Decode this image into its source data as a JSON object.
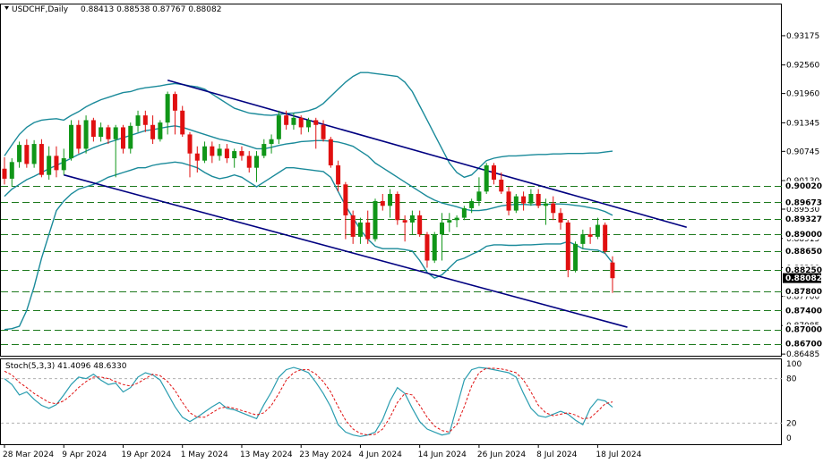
{
  "header": {
    "symbol": "USDCHF,Daily",
    "ohlc": "0.88413 0.88538 0.87767 0.88082",
    "stoch_label": "Stoch(5,3,3) 41.4096 48.6330"
  },
  "colors": {
    "bull": "#109618",
    "bear": "#e01010",
    "band": "#1a8a9a",
    "channel": "#000080",
    "level": "#1e7a1e",
    "stoch_main": "#2a9db0",
    "stoch_signal": "#e01010",
    "current_price_bg": "#000000"
  },
  "chart_data": [
    {
      "type": "candlestick",
      "title": "USDCHF,Daily",
      "subtitle": "0.88413 0.88538 0.87767 0.88082",
      "ylim": [
        0.8645,
        0.9385
      ],
      "x_ticks": [
        {
          "i": 0,
          "label": "28 Mar 2024"
        },
        {
          "i": 8,
          "label": "9 Apr 2024"
        },
        {
          "i": 16,
          "label": "19 Apr 2024"
        },
        {
          "i": 24,
          "label": "1 May 2024"
        },
        {
          "i": 32,
          "label": "13 May 2024"
        },
        {
          "i": 40,
          "label": "23 May 2024"
        },
        {
          "i": 48,
          "label": "4 Jun 2024"
        },
        {
          "i": 56,
          "label": "14 Jun 2024"
        },
        {
          "i": 64,
          "label": "26 Jun 2024"
        },
        {
          "i": 72,
          "label": "8 Jul 2024"
        },
        {
          "i": 80,
          "label": "18 Jul 2024"
        }
      ],
      "y_ticks": [
        0.93175,
        0.9256,
        0.9196,
        0.91345,
        0.90745,
        0.9013,
        0.8953,
        0.88915,
        0.883,
        0.877,
        0.87085,
        0.86485
      ],
      "y_tick_labels": [
        "0.93175",
        "0.92560",
        "0.91960",
        "0.91345",
        "0.90745",
        "0.90130",
        "0.89530",
        "0.88915",
        "0.88300",
        "0.87700",
        "0.87085",
        "0.86485"
      ],
      "levels": [
        0.9002,
        0.89673,
        0.89327,
        0.89,
        0.8865,
        0.8825,
        0.878,
        0.874,
        0.87,
        0.867
      ],
      "level_labels": [
        "0.90020",
        "0.89673",
        "0.89327",
        "0.89000",
        "0.88650",
        "0.88250",
        "0.87800",
        "0.87400",
        "0.87000",
        "0.86700"
      ],
      "current_price": 0.88082,
      "current_price_label": "0.88082",
      "candles": [
        [
          0.9038,
          0.9062,
          0.9005,
          0.9017
        ],
        [
          0.9017,
          0.906,
          0.9,
          0.9052
        ],
        [
          0.9052,
          0.9095,
          0.904,
          0.9088
        ],
        [
          0.9088,
          0.91,
          0.904,
          0.9048
        ],
        [
          0.9048,
          0.9098,
          0.904,
          0.909
        ],
        [
          0.909,
          0.91,
          0.902,
          0.9025
        ],
        [
          0.9025,
          0.9085,
          0.9015,
          0.9065
        ],
        [
          0.9065,
          0.9085,
          0.902,
          0.9035
        ],
        [
          0.9035,
          0.908,
          0.9025,
          0.906
        ],
        [
          0.906,
          0.914,
          0.9055,
          0.913
        ],
        [
          0.913,
          0.914,
          0.907,
          0.908
        ],
        [
          0.908,
          0.915,
          0.907,
          0.914
        ],
        [
          0.914,
          0.9145,
          0.9095,
          0.9105
        ],
        [
          0.9105,
          0.9135,
          0.9095,
          0.9125
        ],
        [
          0.9125,
          0.913,
          0.909,
          0.91
        ],
        [
          0.91,
          0.913,
          0.902,
          0.9125
        ],
        [
          0.9125,
          0.913,
          0.907,
          0.908
        ],
        [
          0.908,
          0.9135,
          0.907,
          0.9128
        ],
        [
          0.9128,
          0.916,
          0.9115,
          0.915
        ],
        [
          0.915,
          0.916,
          0.9115,
          0.913
        ],
        [
          0.913,
          0.915,
          0.909,
          0.91
        ],
        [
          0.91,
          0.914,
          0.9095,
          0.9135
        ],
        [
          0.9135,
          0.92,
          0.911,
          0.9195
        ],
        [
          0.9195,
          0.92,
          0.911,
          0.916
        ],
        [
          0.916,
          0.917,
          0.9105,
          0.911
        ],
        [
          0.911,
          0.9115,
          0.902,
          0.907
        ],
        [
          0.907,
          0.9085,
          0.903,
          0.9055
        ],
        [
          0.9055,
          0.9095,
          0.905,
          0.9085
        ],
        [
          0.9085,
          0.9095,
          0.905,
          0.9065
        ],
        [
          0.9065,
          0.909,
          0.9055,
          0.908
        ],
        [
          0.908,
          0.909,
          0.905,
          0.906
        ],
        [
          0.906,
          0.908,
          0.904,
          0.9075
        ],
        [
          0.9075,
          0.9085,
          0.9055,
          0.9065
        ],
        [
          0.9065,
          0.9075,
          0.903,
          0.904
        ],
        [
          0.904,
          0.9075,
          0.901,
          0.9065
        ],
        [
          0.9065,
          0.91,
          0.906,
          0.909
        ],
        [
          0.909,
          0.911,
          0.907,
          0.91
        ],
        [
          0.91,
          0.916,
          0.909,
          0.915
        ],
        [
          0.915,
          0.916,
          0.912,
          0.913
        ],
        [
          0.913,
          0.9155,
          0.912,
          0.9145
        ],
        [
          0.9145,
          0.915,
          0.911,
          0.9125
        ],
        [
          0.9125,
          0.9145,
          0.9115,
          0.914
        ],
        [
          0.914,
          0.9145,
          0.908,
          0.913
        ],
        [
          0.913,
          0.914,
          0.9095,
          0.91
        ],
        [
          0.91,
          0.9105,
          0.904,
          0.9045
        ],
        [
          0.9045,
          0.9055,
          0.899,
          0.9005
        ],
        [
          0.9005,
          0.901,
          0.889,
          0.894
        ],
        [
          0.894,
          0.895,
          0.888,
          0.8895
        ],
        [
          0.8895,
          0.8935,
          0.888,
          0.8925
        ],
        [
          0.8925,
          0.895,
          0.888,
          0.889
        ],
        [
          0.889,
          0.8975,
          0.8885,
          0.897
        ],
        [
          0.897,
          0.8985,
          0.895,
          0.896
        ],
        [
          0.896,
          0.8995,
          0.8935,
          0.8985
        ],
        [
          0.8985,
          0.899,
          0.892,
          0.893
        ],
        [
          0.893,
          0.894,
          0.8885,
          0.8925
        ],
        [
          0.8925,
          0.895,
          0.89,
          0.894
        ],
        [
          0.894,
          0.895,
          0.8895,
          0.89
        ],
        [
          0.89,
          0.8905,
          0.883,
          0.8845
        ],
        [
          0.8845,
          0.8905,
          0.884,
          0.89
        ],
        [
          0.89,
          0.8945,
          0.8845,
          0.8925
        ],
        [
          0.8925,
          0.8945,
          0.8905,
          0.893
        ],
        [
          0.893,
          0.894,
          0.8915,
          0.8935
        ],
        [
          0.8935,
          0.896,
          0.893,
          0.8955
        ],
        [
          0.8955,
          0.8975,
          0.8945,
          0.897
        ],
        [
          0.897,
          0.902,
          0.896,
          0.899
        ],
        [
          0.899,
          0.905,
          0.8985,
          0.9045
        ],
        [
          0.9045,
          0.905,
          0.9005,
          0.9015
        ],
        [
          0.9015,
          0.903,
          0.8985,
          0.899
        ],
        [
          0.899,
          0.9,
          0.894,
          0.895
        ],
        [
          0.895,
          0.8985,
          0.8945,
          0.898
        ],
        [
          0.898,
          0.899,
          0.895,
          0.8965
        ],
        [
          0.8965,
          0.8995,
          0.896,
          0.8985
        ],
        [
          0.8985,
          0.8995,
          0.8955,
          0.896
        ],
        [
          0.896,
          0.8975,
          0.892,
          0.8965
        ],
        [
          0.8965,
          0.898,
          0.893,
          0.8945
        ],
        [
          0.8945,
          0.8955,
          0.891,
          0.8925
        ],
        [
          0.8925,
          0.893,
          0.881,
          0.8825
        ],
        [
          0.8825,
          0.8885,
          0.882,
          0.888
        ],
        [
          0.888,
          0.891,
          0.887,
          0.89
        ],
        [
          0.89,
          0.8915,
          0.888,
          0.8895
        ],
        [
          0.8895,
          0.8935,
          0.889,
          0.892
        ],
        [
          0.892,
          0.8925,
          0.886,
          0.8865
        ],
        [
          0.8841,
          0.8854,
          0.8777,
          0.8808
        ]
      ],
      "bands": {
        "upper": [
          0.9065,
          0.9088,
          0.911,
          0.9125,
          0.9135,
          0.914,
          0.9142,
          0.9143,
          0.914,
          0.915,
          0.9158,
          0.9168,
          0.9176,
          0.9183,
          0.9188,
          0.9193,
          0.9198,
          0.92,
          0.9205,
          0.9208,
          0.921,
          0.9212,
          0.9215,
          0.9217,
          0.9215,
          0.9212,
          0.921,
          0.9205,
          0.9195,
          0.9185,
          0.9175,
          0.9165,
          0.916,
          0.9155,
          0.9153,
          0.9151,
          0.915,
          0.9152,
          0.9154,
          0.9155,
          0.9157,
          0.916,
          0.9165,
          0.9175,
          0.919,
          0.9205,
          0.922,
          0.9232,
          0.924,
          0.924,
          0.9238,
          0.9236,
          0.9234,
          0.9232,
          0.922,
          0.92,
          0.917,
          0.914,
          0.911,
          0.908,
          0.905,
          0.903,
          0.902,
          0.9025,
          0.904,
          0.9055,
          0.906,
          0.9063,
          0.9065,
          0.9065,
          0.9066,
          0.9067,
          0.9068,
          0.9068,
          0.9069,
          0.9069,
          0.907,
          0.907,
          0.907,
          0.9071,
          0.9071,
          0.9073,
          0.9075
        ],
        "middle": [
          0.898,
          0.8995,
          0.9005,
          0.9015,
          0.9022,
          0.903,
          0.9038,
          0.9045,
          0.9052,
          0.906,
          0.9068,
          0.9075,
          0.9082,
          0.9088,
          0.9093,
          0.9098,
          0.9103,
          0.9108,
          0.9113,
          0.9118,
          0.912,
          0.9123,
          0.9126,
          0.9128,
          0.9125,
          0.912,
          0.9115,
          0.911,
          0.9105,
          0.91,
          0.9097,
          0.9093,
          0.909,
          0.9085,
          0.908,
          0.908,
          0.9083,
          0.9087,
          0.909,
          0.9092,
          0.9095,
          0.9096,
          0.9097,
          0.9097,
          0.9096,
          0.9094,
          0.909,
          0.9085,
          0.9075,
          0.9065,
          0.905,
          0.904,
          0.903,
          0.902,
          0.901,
          0.9,
          0.899,
          0.898,
          0.8972,
          0.8966,
          0.8962,
          0.8958,
          0.8953,
          0.895,
          0.895,
          0.8952,
          0.8956,
          0.896,
          0.8962,
          0.8963,
          0.8963,
          0.8962,
          0.8963,
          0.8963,
          0.8964,
          0.8964,
          0.8963,
          0.8961,
          0.8959,
          0.8956,
          0.8953,
          0.8948,
          0.894
        ],
        "lower": [
          0.87,
          0.8702,
          0.8707,
          0.874,
          0.879,
          0.885,
          0.89,
          0.895,
          0.897,
          0.8985,
          0.8995,
          0.9,
          0.9005,
          0.9012,
          0.902,
          0.9025,
          0.903,
          0.9035,
          0.904,
          0.904,
          0.9045,
          0.9048,
          0.905,
          0.9052,
          0.905,
          0.9045,
          0.904,
          0.903,
          0.9022,
          0.9017,
          0.902,
          0.9025,
          0.902,
          0.901,
          0.9,
          0.901,
          0.902,
          0.903,
          0.904,
          0.904,
          0.9038,
          0.9036,
          0.9034,
          0.9032,
          0.902,
          0.899,
          0.896,
          0.8935,
          0.891,
          0.889,
          0.8875,
          0.887,
          0.887,
          0.887,
          0.8868,
          0.8865,
          0.8845,
          0.882,
          0.8808,
          0.8815,
          0.883,
          0.8845,
          0.885,
          0.8858,
          0.8865,
          0.8875,
          0.8878,
          0.8878,
          0.8877,
          0.8877,
          0.8878,
          0.8878,
          0.8879,
          0.888,
          0.888,
          0.888,
          0.8885,
          0.8878,
          0.887,
          0.8868,
          0.8867,
          0.886,
          0.884
        ]
      },
      "channel": {
        "upper": [
          [
            22,
            0.9224
          ],
          [
            92,
            0.8915
          ]
        ],
        "lower": [
          [
            8,
            0.9025
          ],
          [
            84,
            0.8705
          ]
        ]
      }
    },
    {
      "type": "line",
      "title": "Stoch(5,3,3) 41.4096 48.6330",
      "ylim": [
        0,
        100
      ],
      "y_ticks": [
        0,
        20,
        80,
        100
      ],
      "y_tick_labels": [
        "0",
        "20",
        "80",
        "100"
      ],
      "series": [
        {
          "values": [
            80,
            72,
            58,
            62,
            52,
            44,
            40,
            45,
            58,
            72,
            82,
            80,
            86,
            78,
            72,
            74,
            62,
            68,
            82,
            88,
            85,
            78,
            60,
            42,
            28,
            22,
            28,
            35,
            42,
            48,
            40,
            38,
            34,
            30,
            26,
            45,
            62,
            82,
            92,
            95,
            92,
            88,
            75,
            60,
            42,
            18,
            8,
            4,
            2,
            4,
            8,
            25,
            50,
            68,
            60,
            40,
            22,
            12,
            8,
            4,
            6,
            42,
            78,
            92,
            95,
            94,
            92,
            90,
            88,
            82,
            60,
            40,
            30,
            28,
            32,
            36,
            32,
            24,
            18,
            40,
            52,
            50,
            41.4096
          ]
        },
        {
          "values": [
            90,
            85,
            75,
            68,
            60,
            54,
            48,
            46,
            50,
            58,
            68,
            76,
            82,
            82,
            80,
            76,
            72,
            70,
            74,
            80,
            86,
            84,
            76,
            64,
            48,
            34,
            28,
            28,
            34,
            40,
            42,
            40,
            37,
            34,
            31,
            34,
            44,
            60,
            78,
            88,
            92,
            92,
            86,
            76,
            62,
            42,
            24,
            12,
            6,
            4,
            5,
            12,
            28,
            48,
            60,
            58,
            44,
            28,
            16,
            10,
            8,
            18,
            42,
            70,
            88,
            94,
            94,
            93,
            91,
            88,
            78,
            62,
            44,
            34,
            30,
            32,
            34,
            31,
            26,
            27,
            36,
            46,
            48.633
          ]
        }
      ]
    }
  ]
}
